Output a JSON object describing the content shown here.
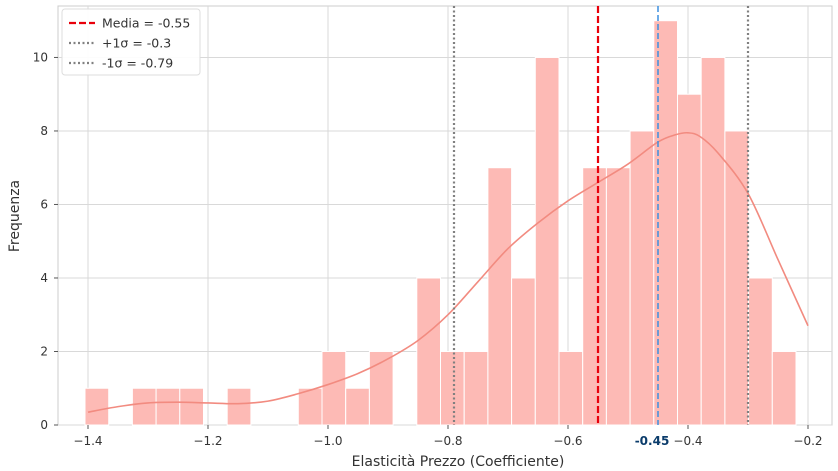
{
  "chart_data": {
    "type": "bar",
    "xlabel": "Elasticità Prezzo (Coefficiente)",
    "ylabel": "Frequenza",
    "xlim": [
      -1.45,
      -0.16
    ],
    "ylim": [
      0,
      11.4
    ],
    "x_ticks": [
      {
        "value": -1.4,
        "label": "−1.4"
      },
      {
        "value": -1.2,
        "label": "−1.2"
      },
      {
        "value": -1.0,
        "label": "−1.0"
      },
      {
        "value": -0.8,
        "label": "−0.8"
      },
      {
        "value": -0.6,
        "label": "−0.6"
      },
      {
        "value": -0.4,
        "label": "−0.4"
      },
      {
        "value": -0.2,
        "label": "−0.2"
      }
    ],
    "y_ticks": [
      0,
      2,
      4,
      6,
      8,
      10
    ],
    "grid": true,
    "bin_start": -1.405,
    "bin_width": 0.0395,
    "histogram_counts": [
      1,
      0,
      1,
      1,
      1,
      0,
      1,
      0,
      0,
      1,
      2,
      1,
      2,
      0,
      4,
      2,
      2,
      7,
      4,
      10,
      2,
      7,
      7,
      8,
      11,
      9,
      10,
      8,
      4,
      2
    ],
    "kde_curve": {
      "x": [
        -1.4,
        -1.35,
        -1.3,
        -1.25,
        -1.2,
        -1.15,
        -1.1,
        -1.05,
        -1.0,
        -0.95,
        -0.9,
        -0.85,
        -0.8,
        -0.75,
        -0.7,
        -0.65,
        -0.6,
        -0.55,
        -0.5,
        -0.45,
        -0.42,
        -0.4,
        -0.38,
        -0.35,
        -0.3,
        -0.25,
        -0.2
      ],
      "y": [
        0.35,
        0.5,
        0.6,
        0.62,
        0.6,
        0.58,
        0.65,
        0.85,
        1.1,
        1.4,
        1.8,
        2.3,
        3.0,
        3.9,
        4.8,
        5.5,
        6.1,
        6.6,
        7.1,
        7.7,
        7.9,
        7.95,
        7.85,
        7.4,
        6.3,
        4.5,
        2.7
      ]
    },
    "vertical_lines": [
      {
        "name": "Media = -0.55",
        "x": -0.55,
        "style": "dashed",
        "color": "#e8000b"
      },
      {
        "name": "+1σ = -0.3",
        "x": -0.3,
        "style": "dotted",
        "color": "#808080"
      },
      {
        "name": "-1σ = -0.79",
        "x": -0.79,
        "style": "dotted",
        "color": "#808080"
      },
      {
        "name": "",
        "x": -0.45,
        "style": "dashed",
        "color": "#3c8fe0",
        "tick_label": "-0.45"
      }
    ],
    "colors": {
      "bar": "#fdbab5",
      "kde": "#f28b80"
    },
    "legend_position": "top-left"
  }
}
